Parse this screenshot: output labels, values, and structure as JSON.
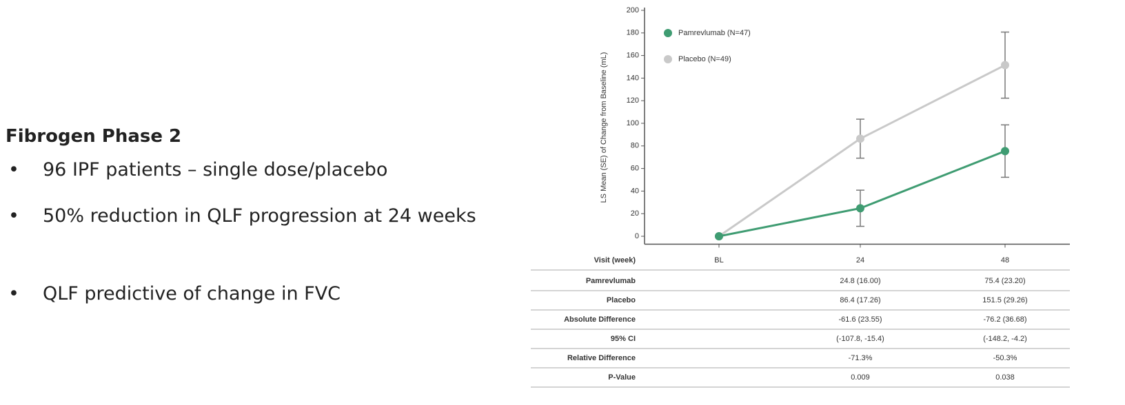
{
  "slide": {
    "heading": "Fibrogen Phase 2",
    "bullets": [
      "96 IPF patients – single dose/placebo",
      "50% reduction in QLF progression at 24 weeks",
      "QLF predictive of change in FVC"
    ]
  },
  "chart_data": {
    "type": "line",
    "ylabel": "LS Mean (SE) of Change from Baseline (mL)",
    "categories": [
      "BL",
      "24",
      "48"
    ],
    "series": [
      {
        "name": "Pamrevlumab (N=47)",
        "color": "#3f9c72",
        "values": [
          0,
          24.8,
          75.4
        ],
        "errors": [
          null,
          16.0,
          23.2
        ]
      },
      {
        "name": "Placebo (N=49)",
        "color": "#c9c9c9",
        "values": [
          0,
          86.4,
          151.5
        ],
        "errors": [
          null,
          17.26,
          29.26
        ]
      }
    ],
    "ylim": [
      -7,
      200
    ],
    "yticks": [
      0,
      20,
      40,
      60,
      80,
      100,
      120,
      140,
      160,
      180,
      200
    ],
    "legend": "upper left"
  },
  "table": {
    "header": "Visit (week)",
    "rows": [
      {
        "label": "Pamrevlumab",
        "cells": [
          "24.8 (16.00)",
          "75.4 (23.20)"
        ]
      },
      {
        "label": "Placebo",
        "cells": [
          "86.4 (17.26)",
          "151.5 (29.26)"
        ]
      },
      {
        "label": "Absolute Difference",
        "cells": [
          "-61.6 (23.55)",
          "-76.2 (36.68)"
        ]
      },
      {
        "label": "95% CI",
        "cells": [
          "(-107.8, -15.4)",
          "(-148.2, -4.2)"
        ]
      },
      {
        "label": "Relative Difference",
        "cells": [
          "-71.3%",
          "-50.3%"
        ]
      },
      {
        "label": "P-Value",
        "cells": [
          "0.009",
          "0.038"
        ]
      }
    ]
  }
}
